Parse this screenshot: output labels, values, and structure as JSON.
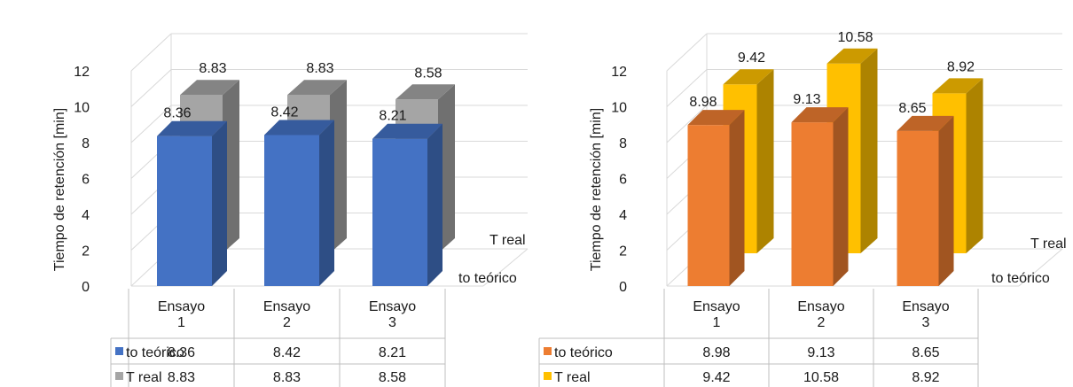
{
  "chart_data": [
    {
      "type": "bar",
      "variant": "3d-clustered-with-data-table",
      "categories": [
        [
          "Ensayo",
          "1"
        ],
        [
          "Ensayo",
          "2"
        ],
        [
          "Ensayo",
          "3"
        ]
      ],
      "series": [
        {
          "name": "to teórico",
          "values": [
            8.36,
            8.42,
            8.21
          ],
          "color": "#4472c4",
          "data_labels": [
            "8.36",
            "8.42",
            "8.21"
          ],
          "table_values": [
            "8.36",
            "8.42",
            "8.21"
          ]
        },
        {
          "name": "T real",
          "values": [
            8.83,
            8.83,
            8.58
          ],
          "color": "#a5a5a5",
          "data_labels": [
            "8.83",
            "8.83",
            "8.58"
          ],
          "table_values": [
            "8.83",
            "8.83",
            "8.58"
          ]
        }
      ],
      "ylabel": "Tiempo de retención [min]",
      "ylim": [
        0,
        12
      ],
      "yticks": [
        "0",
        "2",
        "4",
        "6",
        "8",
        "10",
        "12"
      ],
      "grid": true,
      "depth_labels": [
        "T real",
        "to teórico"
      ]
    },
    {
      "type": "bar",
      "variant": "3d-clustered-with-data-table",
      "categories": [
        [
          "Ensayo",
          "1"
        ],
        [
          "Ensayo",
          "2"
        ],
        [
          "Ensayo",
          "3"
        ]
      ],
      "series": [
        {
          "name": "to teórico",
          "values": [
            8.98,
            9.13,
            8.65
          ],
          "color": "#ed7d31",
          "data_labels": [
            "8.98",
            "9.13",
            "8.65"
          ],
          "table_values": [
            "8.98",
            "9.13",
            "8.65"
          ]
        },
        {
          "name": "T real",
          "values": [
            9.42,
            10.58,
            8.92
          ],
          "color": "#ffc000",
          "data_labels": [
            "9.42",
            "10.58",
            "8.92"
          ],
          "table_values": [
            "9.42",
            "10.58",
            "8.92"
          ]
        }
      ],
      "ylabel": "Tiempo de retención [min]",
      "ylim": [
        0,
        12
      ],
      "yticks": [
        "0",
        "2",
        "4",
        "6",
        "8",
        "10",
        "12"
      ],
      "grid": true,
      "depth_labels": [
        "T real",
        "to teórico"
      ]
    }
  ]
}
